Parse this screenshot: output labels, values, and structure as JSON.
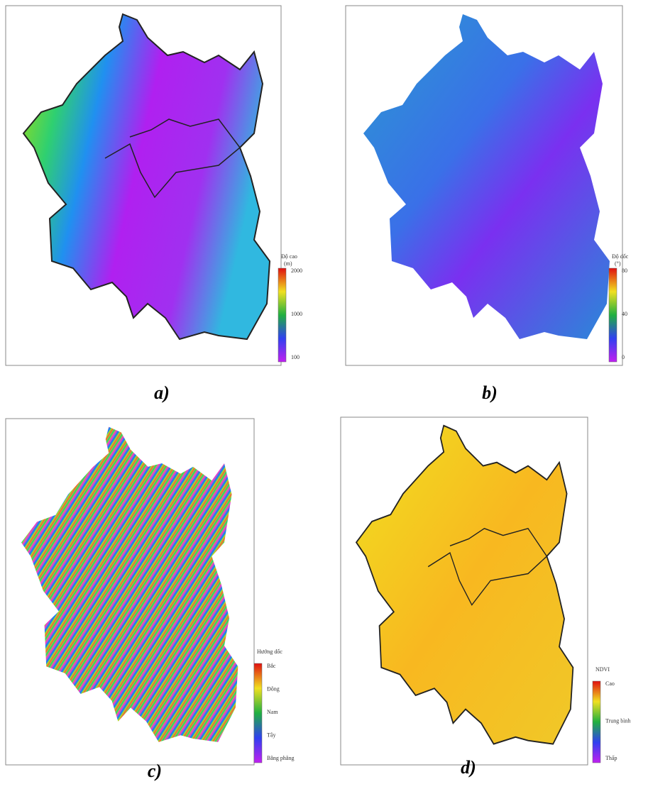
{
  "panels": [
    {
      "caption": "a)",
      "legend": {
        "title": "Độ cao",
        "unit": "(m)",
        "labels": [
          "2000",
          "1000",
          "100"
        ]
      }
    },
    {
      "caption": "b)",
      "legend": {
        "title": "Độ dốc",
        "unit": "(°)",
        "labels": [
          "80",
          "40",
          "0"
        ]
      }
    },
    {
      "caption": "c)",
      "legend": {
        "title": "Hướng dốc",
        "unit": "",
        "labels": [
          "Bắc",
          "Đông",
          "Nam",
          "Tây",
          "Bằng phẳng"
        ]
      }
    },
    {
      "caption": "d)",
      "legend": {
        "title": "NDVI",
        "unit": "",
        "labels": [
          "Cao",
          "Trung bình",
          "Thấp"
        ]
      }
    }
  ]
}
